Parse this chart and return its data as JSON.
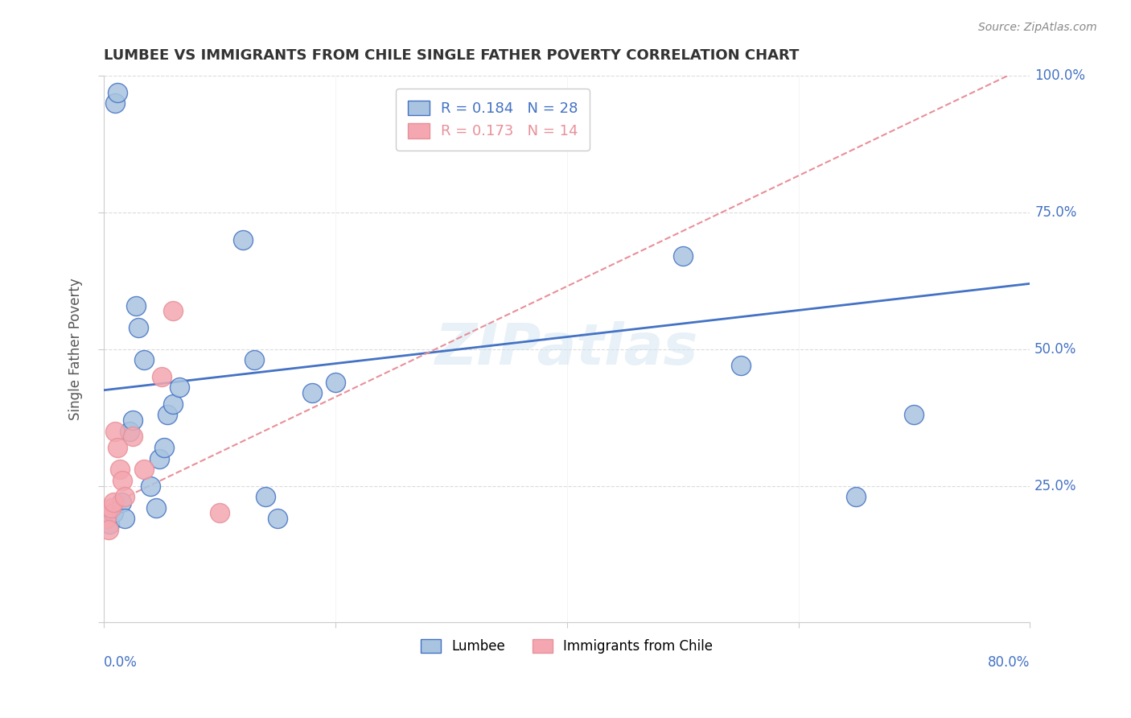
{
  "title": "LUMBEE VS IMMIGRANTS FROM CHILE SINGLE FATHER POVERTY CORRELATION CHART",
  "source": "Source: ZipAtlas.com",
  "ylabel": "Single Father Poverty",
  "legend_lumbee_r": "R = 0.184",
  "legend_lumbee_n": "N = 28",
  "legend_chile_r": "R = 0.173",
  "legend_chile_n": "N = 14",
  "lumbee_color": "#a8c4e0",
  "chile_color": "#f4a7b0",
  "lumbee_line_color": "#4472c4",
  "chile_line_color": "#e8909a",
  "watermark": "ZIPatlas",
  "xlim": [
    0.0,
    0.8
  ],
  "ylim": [
    0.0,
    1.0
  ],
  "lumbee_x": [
    0.005,
    0.008,
    0.01,
    0.012,
    0.015,
    0.018,
    0.022,
    0.025,
    0.028,
    0.03,
    0.035,
    0.04,
    0.045,
    0.048,
    0.052,
    0.055,
    0.06,
    0.065,
    0.12,
    0.13,
    0.14,
    0.15,
    0.18,
    0.2,
    0.5,
    0.55,
    0.65,
    0.7
  ],
  "lumbee_y": [
    0.18,
    0.2,
    0.95,
    0.97,
    0.22,
    0.19,
    0.35,
    0.37,
    0.58,
    0.54,
    0.48,
    0.25,
    0.21,
    0.3,
    0.32,
    0.38,
    0.4,
    0.43,
    0.7,
    0.48,
    0.23,
    0.19,
    0.42,
    0.44,
    0.67,
    0.47,
    0.23,
    0.38
  ],
  "chile_x": [
    0.002,
    0.004,
    0.006,
    0.008,
    0.01,
    0.012,
    0.014,
    0.016,
    0.018,
    0.025,
    0.035,
    0.05,
    0.06,
    0.1
  ],
  "chile_y": [
    0.19,
    0.17,
    0.21,
    0.22,
    0.35,
    0.32,
    0.28,
    0.26,
    0.23,
    0.34,
    0.28,
    0.45,
    0.57,
    0.2
  ],
  "lumbee_trendline_x": [
    0.0,
    0.8
  ],
  "lumbee_trendline_y": [
    0.425,
    0.62
  ],
  "chile_trendline_x": [
    0.0,
    0.8
  ],
  "chile_trendline_y": [
    0.21,
    1.02
  ]
}
